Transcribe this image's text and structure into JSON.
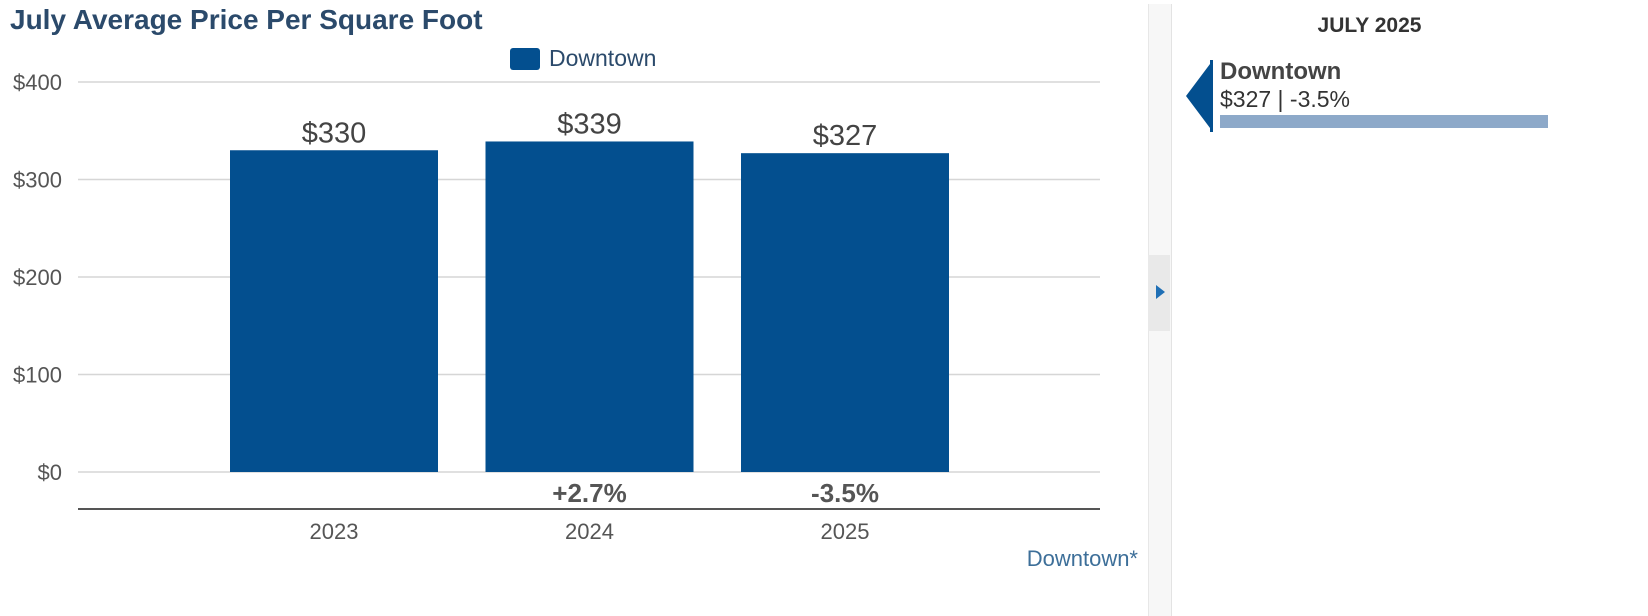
{
  "title": "July Average Price Per Square Foot",
  "legend": {
    "label": "Downtown",
    "color": "#034f8f"
  },
  "footnote": "Downtown*",
  "chart_data": {
    "type": "bar",
    "title": "July Average Price Per Square Foot",
    "categories": [
      "2023",
      "2024",
      "2025"
    ],
    "series": [
      {
        "name": "Downtown",
        "values": [
          330,
          339,
          327
        ],
        "color": "#034f8f"
      }
    ],
    "value_labels": [
      "$330",
      "$339",
      "$327"
    ],
    "change_labels": [
      "",
      "+2.7%",
      "-3.5%"
    ],
    "yticks": [
      0,
      100,
      200,
      300,
      400
    ],
    "ytick_labels": [
      "$0",
      "$100",
      "$200",
      "$300",
      "$400"
    ],
    "ylim": [
      0,
      400
    ],
    "xlabel": "",
    "ylabel": "",
    "grid": true,
    "legend_position": "top-center"
  },
  "side_panel": {
    "heading": "JULY 2025",
    "entry_name": "Downtown",
    "entry_value": "$327 | -3.5%",
    "toggle_icon": "chevron-right-icon"
  }
}
